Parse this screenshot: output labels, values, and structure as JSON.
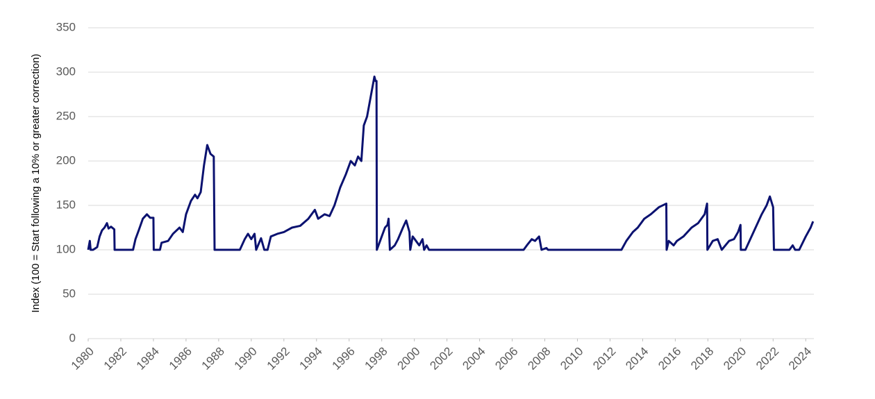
{
  "chart_data": {
    "type": "line",
    "ylabel": "Index (100 = Start following a 10% or greater correction)",
    "x": [
      1980.0,
      1980.1,
      1980.15,
      1980.3,
      1980.55,
      1980.7,
      1980.85,
      1981.0,
      1981.15,
      1981.25,
      1981.4,
      1981.6,
      1981.62,
      1982.75,
      1982.9,
      1983.1,
      1983.35,
      1983.6,
      1983.8,
      1984.0,
      1984.02,
      1984.4,
      1984.5,
      1984.9,
      1985.2,
      1985.6,
      1985.8,
      1986.0,
      1986.3,
      1986.55,
      1986.7,
      1986.9,
      1987.1,
      1987.3,
      1987.5,
      1987.7,
      1987.75,
      1987.77,
      1989.3,
      1989.6,
      1989.8,
      1990.0,
      1990.2,
      1990.3,
      1990.6,
      1990.8,
      1991.0,
      1991.2,
      1991.6,
      1992.0,
      1992.5,
      1993.0,
      1993.5,
      1993.9,
      1994.1,
      1994.5,
      1994.8,
      1995.1,
      1995.45,
      1995.8,
      1996.1,
      1996.35,
      1996.55,
      1996.75,
      1996.9,
      1997.1,
      1997.35,
      1997.55,
      1997.62,
      1997.68,
      1997.7,
      1997.9,
      1998.2,
      1998.35,
      1998.42,
      1998.5,
      1998.8,
      1999.0,
      1999.3,
      1999.5,
      1999.7,
      1999.75,
      1999.9,
      2000.1,
      2000.3,
      2000.5,
      2000.6,
      2000.75,
      2000.9,
      2006.7,
      2006.9,
      2007.2,
      2007.4,
      2007.65,
      2007.8,
      2008.1,
      2008.2,
      2012.7,
      2013.0,
      2013.4,
      2013.7,
      2014.1,
      2014.5,
      2015.0,
      2015.45,
      2015.47,
      2015.6,
      2015.9,
      2016.1,
      2016.5,
      2017.0,
      2017.4,
      2017.8,
      2017.95,
      2017.97,
      2018.3,
      2018.6,
      2018.85,
      2019.3,
      2019.6,
      2019.85,
      2020.0,
      2020.02,
      2020.3,
      2020.8,
      2021.3,
      2021.6,
      2021.8,
      2022.0,
      2022.05,
      2023.0,
      2023.2,
      2023.35,
      2023.6,
      2024.0,
      2024.3,
      2024.45
    ],
    "series": [
      {
        "name": "Index",
        "color": "#0b1270",
        "values": [
          100,
          110,
          100,
          100,
          103,
          115,
          122,
          125,
          130,
          124,
          126,
          123,
          100,
          100,
          112,
          122,
          135,
          140,
          136,
          136,
          100,
          100,
          108,
          110,
          118,
          125,
          120,
          140,
          155,
          162,
          158,
          165,
          195,
          218,
          208,
          205,
          100,
          100,
          100,
          112,
          118,
          112,
          118,
          100,
          113,
          100,
          100,
          115,
          118,
          120,
          125,
          127,
          135,
          145,
          135,
          140,
          138,
          150,
          170,
          185,
          200,
          195,
          205,
          200,
          240,
          250,
          275,
          295,
          290,
          290,
          100,
          110,
          125,
          128,
          135,
          100,
          105,
          112,
          125,
          133,
          120,
          100,
          115,
          110,
          105,
          112,
          100,
          105,
          100,
          100,
          105,
          112,
          110,
          115,
          100,
          102,
          100,
          100,
          110,
          120,
          125,
          135,
          140,
          148,
          152,
          100,
          110,
          105,
          110,
          115,
          125,
          130,
          140,
          152,
          100,
          110,
          112,
          100,
          110,
          112,
          120,
          128,
          100,
          100,
          120,
          140,
          150,
          160,
          148,
          100,
          100,
          105,
          100,
          100,
          115,
          125,
          132
        ]
      }
    ],
    "xlim": [
      1980,
      2024.5
    ],
    "xticks": [
      1980,
      1982,
      1984,
      1986,
      1988,
      1990,
      1992,
      1994,
      1996,
      1998,
      2000,
      2002,
      2004,
      2006,
      2008,
      2010,
      2012,
      2014,
      2016,
      2018,
      2020,
      2022,
      2024
    ],
    "ylim": [
      0,
      350
    ],
    "yticks": [
      0,
      50,
      100,
      150,
      200,
      250,
      300,
      350
    ],
    "grid": true
  }
}
